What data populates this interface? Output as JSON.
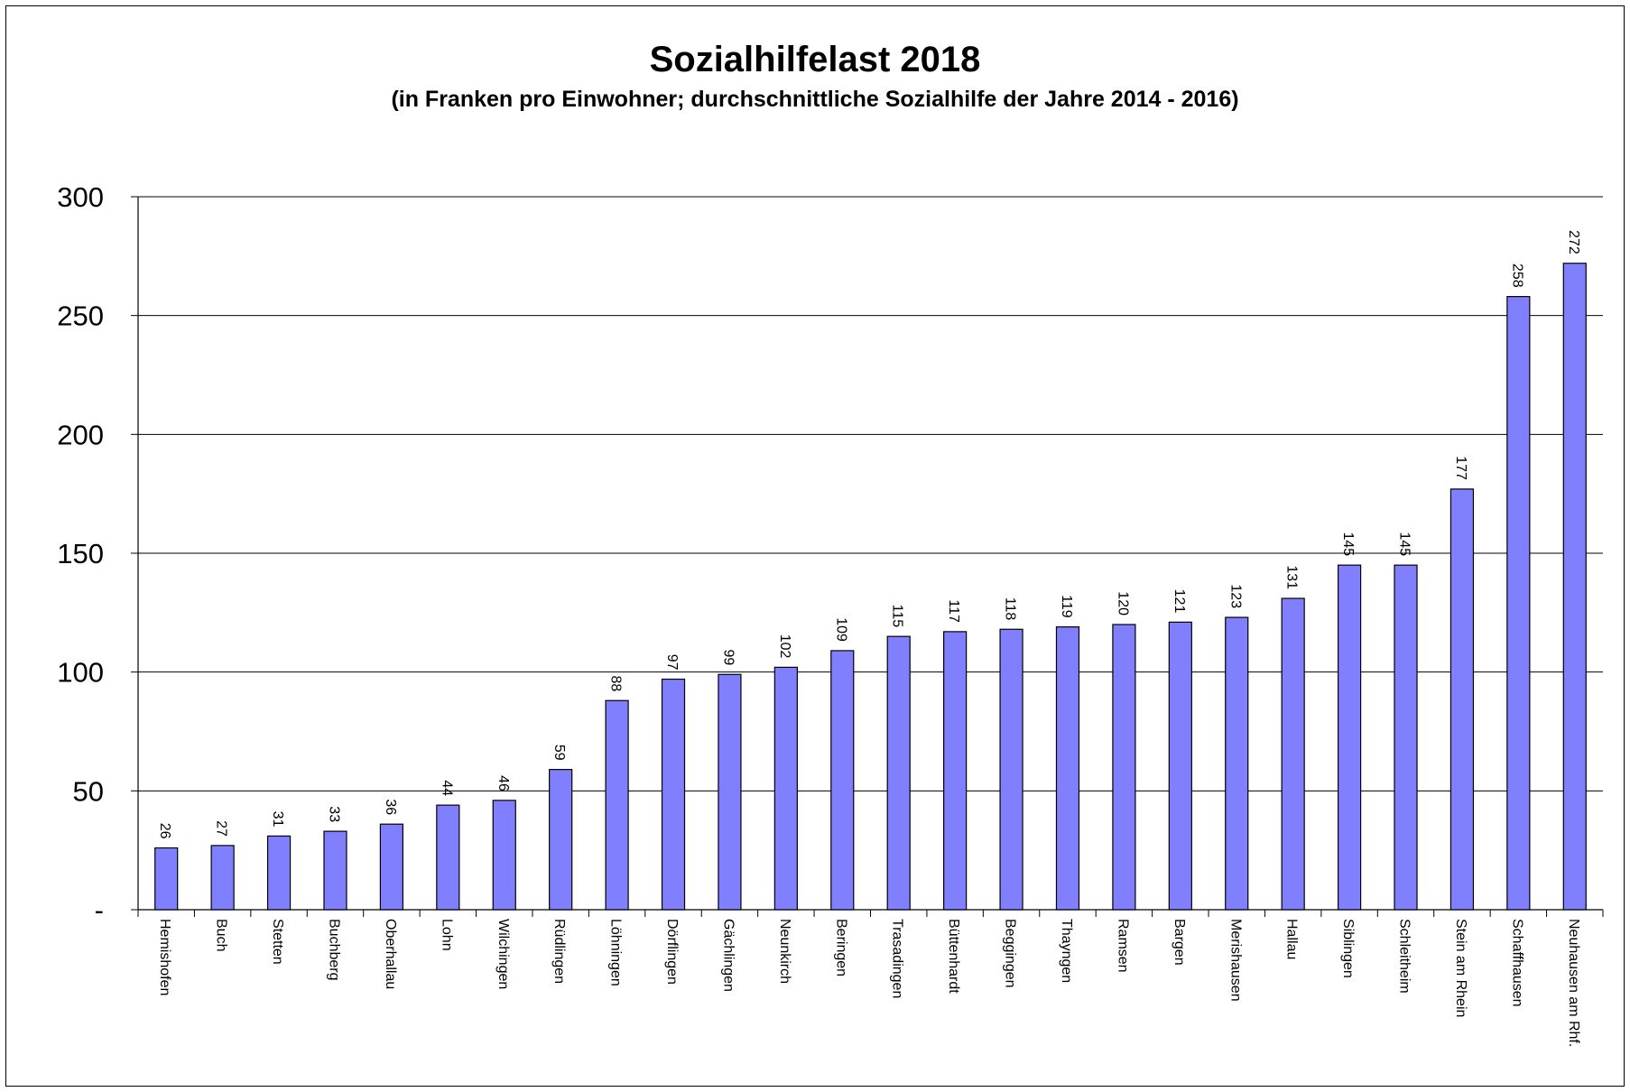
{
  "chart_data": {
    "type": "bar",
    "title": "Sozialhilfelast 2018",
    "subtitle": "(in Franken pro Einwohner; durchschnittliche Sozialhilfe der Jahre 2014 - 2016)",
    "categories": [
      "Hemishofen",
      "Buch",
      "Stetten",
      "Buchberg",
      "Oberhallau",
      "Lohn",
      "Wilchingen",
      "Rüdlingen",
      "Löhningen",
      "Dörflingen",
      "Gächlingen",
      "Neunkirch",
      "Beringen",
      "Trasadingen",
      "Büttenhardt",
      "Beggingen",
      "Thayngen",
      "Ramsen",
      "Bargen",
      "Merishausen",
      "Hallau",
      "Siblingen",
      "Schleitheim",
      "Stein am Rhein",
      "Schaffhausen",
      "Neuhausen am Rhf."
    ],
    "values": [
      26,
      27,
      31,
      33,
      36,
      44,
      46,
      59,
      88,
      97,
      99,
      102,
      109,
      115,
      117,
      118,
      119,
      120,
      121,
      123,
      131,
      145,
      145,
      177,
      258,
      272
    ],
    "ylim": [
      0,
      300
    ],
    "yticks": [
      0,
      50,
      100,
      150,
      200,
      250,
      300
    ],
    "ytick_labels": [
      "-",
      "50",
      "100",
      "150",
      "200",
      "250",
      "300"
    ],
    "grid": true,
    "bar_color": "#8080ff"
  }
}
